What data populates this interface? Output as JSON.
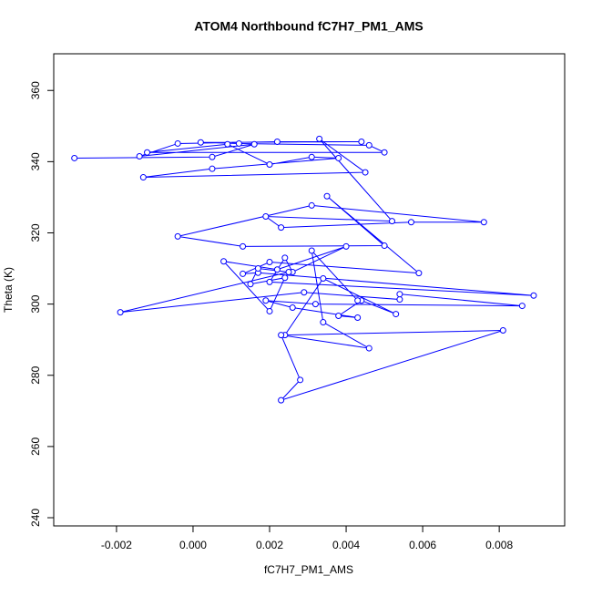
{
  "chart_data": {
    "type": "scatter",
    "title": "ATOM4 Northbound fC7H7_PM1_AMS",
    "x_label": "fC7H7_PM1_AMS",
    "y_label": "Theta (K)",
    "color": "#0000ff",
    "connect": true,
    "x": [
      -0.0031,
      0.0005,
      0.0016,
      -0.0014,
      -0.0004,
      0.0022,
      0.0044,
      0.0002,
      0.0012,
      0.0046,
      0.005,
      -0.0012,
      0.0009,
      0.002,
      0.0031,
      0.0038,
      0.0005,
      -0.0013,
      0.0045,
      0.0033,
      0.0052,
      0.0019,
      0.0023,
      0.0057,
      0.0076,
      0.0031,
      -0.0004,
      0.0013,
      0.005,
      0.0035,
      0.0059,
      0.002,
      0.0013,
      0.0017,
      0.0089,
      0.002,
      0.0024,
      0.0026,
      0.004,
      0.0022,
      0.0008,
      0.002,
      0.0024,
      0.0015,
      0.0017,
      0.0025,
      -0.0019,
      0.0029,
      0.0054,
      0.0054,
      0.0086,
      0.0032,
      0.0019,
      0.0026,
      0.0043,
      0.0038,
      0.0044,
      0.0053,
      0.0034,
      0.0024,
      0.0081,
      0.0023,
      0.0028,
      0.0023,
      0.0046,
      0.0034,
      0.0031,
      0.0043
    ],
    "values": [
      341,
      341.3,
      344.9,
      341.5,
      345.1,
      345.6,
      345.6,
      345.4,
      345.1,
      344.6,
      342.6,
      342.6,
      344.9,
      339.2,
      341.3,
      341,
      338,
      335.6,
      337,
      346.4,
      323.3,
      324.6,
      321.5,
      323,
      323,
      327.7,
      319,
      316.2,
      316.4,
      330.3,
      308.7,
      311.8,
      308.5,
      308.8,
      302.4,
      306.2,
      313,
      309,
      316.2,
      309.7,
      312,
      298,
      307.4,
      305.6,
      310,
      309,
      297.7,
      303.3,
      301.3,
      302.8,
      299.5,
      300,
      301,
      299,
      296.2,
      296.7,
      301,
      297.2,
      307.2,
      291.3,
      292.6,
      273,
      278.7,
      291.3,
      287.6,
      294.9,
      315,
      301
    ],
    "xlim": [
      -0.00364,
      0.00971
    ],
    "ylim": [
      237.7,
      370.3
    ],
    "xticks": [
      -0.002,
      {
        "value": 0,
        "label": "0.000"
      },
      0.002,
      0.004,
      0.006,
      0.008
    ],
    "yticks": [
      240,
      260,
      280,
      300,
      320,
      340,
      360
    ]
  }
}
